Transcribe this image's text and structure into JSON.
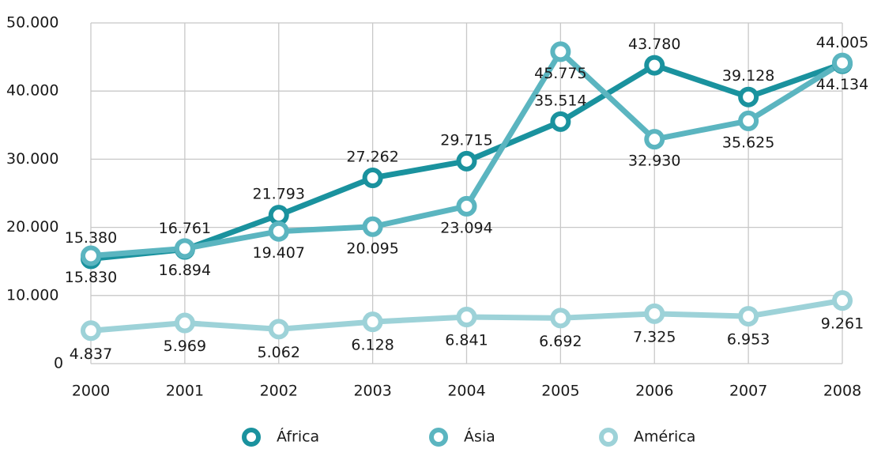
{
  "chart_data": {
    "type": "line",
    "categories": [
      "2000",
      "2001",
      "2002",
      "2003",
      "2004",
      "2005",
      "2006",
      "2007",
      "2008"
    ],
    "series": [
      {
        "name": "África",
        "color": "#1a929e",
        "values": [
          15380,
          16761,
          21793,
          27262,
          29715,
          35514,
          43780,
          39128,
          44005
        ],
        "value_labels": [
          "15.380",
          "16.761",
          "21.793",
          "27.262",
          "29.715",
          "35.514",
          "43.780",
          "39.128",
          "44.005"
        ]
      },
      {
        "name": "Ásia",
        "color": "#5bb5c0",
        "values": [
          15830,
          16894,
          19407,
          20095,
          23094,
          45775,
          32930,
          35625,
          44134
        ],
        "value_labels": [
          "15.830",
          "16.894",
          "19.407",
          "20.095",
          "23.094",
          "45.775",
          "32.930",
          "35.625",
          "44.134"
        ]
      },
      {
        "name": "América",
        "color": "#9dd2d8",
        "values": [
          4837,
          5969,
          5062,
          6128,
          6841,
          6692,
          7325,
          6953,
          9261
        ],
        "value_labels": [
          "4.837",
          "5.969",
          "5.062",
          "6.128",
          "6.841",
          "6.692",
          "7.325",
          "6.953",
          "9.261"
        ]
      }
    ],
    "ylim": [
      0,
      50000
    ],
    "yticks": [
      0,
      {
        "value": 10000,
        "label": "10.000"
      },
      {
        "value": 20000,
        "label": "20.000"
      },
      {
        "value": 30000,
        "label": "30.000"
      },
      {
        "value": 40000,
        "label": "40.000"
      },
      {
        "value": 50000,
        "label": "50.000"
      }
    ],
    "grid": true,
    "legend": "bottom"
  }
}
